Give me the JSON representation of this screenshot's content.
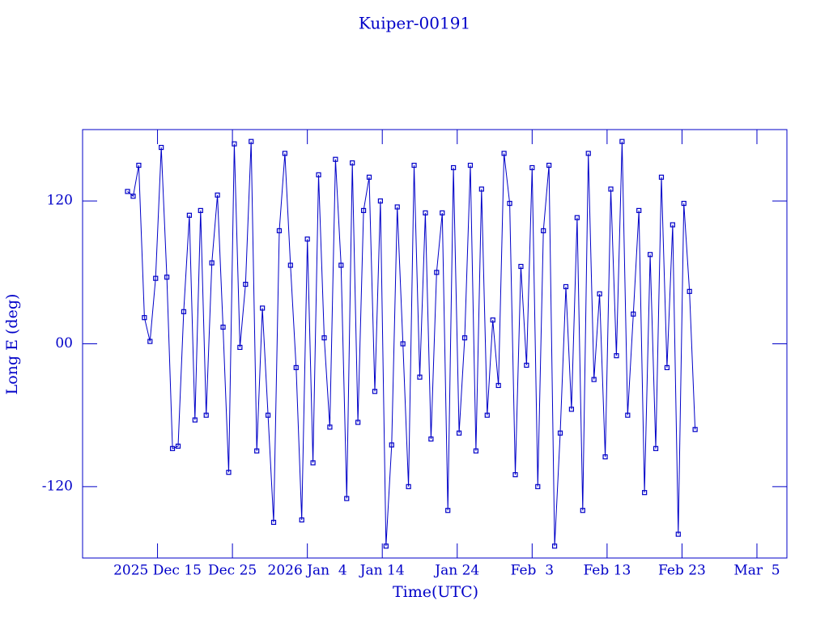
{
  "chart_data": {
    "type": "line",
    "title": "Kuiper-00191",
    "x_label": "Time(UTC)",
    "y_label": "Long E (deg)",
    "color": "#0000c8",
    "xlim": [
      "2025-12-05T00:00",
      "2026-03-09T00:00"
    ],
    "xticks": [
      {
        "value": "2025-12-15T00:00",
        "label": "2025 Dec 15"
      },
      {
        "value": "2025-12-25T00:00",
        "label": "Dec 25"
      },
      {
        "value": "2026-01-04T00:00",
        "label": "2026 Jan  4"
      },
      {
        "value": "2026-01-14T00:00",
        "label": "Jan 14"
      },
      {
        "value": "2026-01-24T00:00",
        "label": "Jan 24"
      },
      {
        "value": "2026-02-03T00:00",
        "label": "Feb  3"
      },
      {
        "value": "2026-02-13T00:00",
        "label": "Feb 13"
      },
      {
        "value": "2026-02-23T00:00",
        "label": "Feb 23"
      },
      {
        "value": "2026-03-05T00:00",
        "label": "Mar  5"
      }
    ],
    "ylim": [
      -180,
      180
    ],
    "yticks": [
      120,
      {
        "value": 0,
        "label": "00"
      },
      -120
    ],
    "x": [
      "2025-12-11T00:00",
      "2025-12-11T18:00",
      "2025-12-12T12:00",
      "2025-12-13T06:00",
      "2025-12-14T00:00",
      "2025-12-14T18:00",
      "2025-12-15T12:00",
      "2025-12-16T06:00",
      "2025-12-17T00:00",
      "2025-12-17T18:00",
      "2025-12-18T12:00",
      "2025-12-19T06:00",
      "2025-12-20T00:00",
      "2025-12-20T18:00",
      "2025-12-21T12:00",
      "2025-12-22T06:00",
      "2025-12-23T00:00",
      "2025-12-23T18:00",
      "2025-12-24T12:00",
      "2025-12-25T06:00",
      "2025-12-26T00:00",
      "2025-12-26T18:00",
      "2025-12-27T12:00",
      "2025-12-28T06:00",
      "2025-12-29T00:00",
      "2025-12-29T18:00",
      "2025-12-30T12:00",
      "2025-12-31T06:00",
      "2026-01-01T00:00",
      "2026-01-01T18:00",
      "2026-01-02T12:00",
      "2026-01-03T06:00",
      "2026-01-04T00:00",
      "2026-01-04T18:00",
      "2026-01-05T12:00",
      "2026-01-06T06:00",
      "2026-01-07T00:00",
      "2026-01-07T18:00",
      "2026-01-08T12:00",
      "2026-01-09T06:00",
      "2026-01-10T00:00",
      "2026-01-10T18:00",
      "2026-01-11T12:00",
      "2026-01-12T06:00",
      "2026-01-13T00:00",
      "2026-01-13T18:00",
      "2026-01-14T12:00",
      "2026-01-15T06:00",
      "2026-01-16T00:00",
      "2026-01-16T18:00",
      "2026-01-17T12:00",
      "2026-01-18T06:00",
      "2026-01-19T00:00",
      "2026-01-19T18:00",
      "2026-01-20T12:00",
      "2026-01-21T06:00",
      "2026-01-22T00:00",
      "2026-01-22T18:00",
      "2026-01-23T12:00",
      "2026-01-24T06:00",
      "2026-01-25T00:00",
      "2026-01-25T18:00",
      "2026-01-26T12:00",
      "2026-01-27T06:00",
      "2026-01-28T00:00",
      "2026-01-28T18:00",
      "2026-01-29T12:00",
      "2026-01-30T06:00",
      "2026-01-31T00:00",
      "2026-01-31T18:00",
      "2026-02-01T12:00",
      "2026-02-02T06:00",
      "2026-02-03T00:00",
      "2026-02-03T18:00",
      "2026-02-04T12:00",
      "2026-02-05T06:00",
      "2026-02-06T00:00",
      "2026-02-06T18:00",
      "2026-02-07T12:00",
      "2026-02-08T06:00",
      "2026-02-09T00:00",
      "2026-02-09T18:00",
      "2026-02-10T12:00",
      "2026-02-11T06:00",
      "2026-02-12T00:00",
      "2026-02-12T18:00",
      "2026-02-13T12:00",
      "2026-02-14T06:00",
      "2026-02-15T00:00",
      "2026-02-15T18:00",
      "2026-02-16T12:00",
      "2026-02-17T06:00",
      "2026-02-18T00:00",
      "2026-02-18T18:00",
      "2026-02-19T12:00",
      "2026-02-20T06:00",
      "2026-02-21T00:00",
      "2026-02-21T18:00",
      "2026-02-22T12:00",
      "2026-02-23T06:00",
      "2026-02-24T00:00",
      "2026-02-24T18:00"
    ],
    "values": [
      128,
      124,
      150,
      22,
      2,
      55,
      165,
      56,
      -88,
      -86,
      27,
      108,
      -64,
      112,
      -60,
      68,
      125,
      14,
      -108,
      168,
      -3,
      50,
      170,
      -90,
      30,
      -60,
      -150,
      95,
      160,
      66,
      -20,
      -148,
      88,
      -100,
      142,
      5,
      -70,
      155,
      66,
      -130,
      152,
      -66,
      112,
      140,
      -40,
      120,
      -170,
      -85,
      115,
      0,
      -120,
      150,
      -28,
      110,
      -80,
      60,
      110,
      -140,
      148,
      -75,
      5,
      150,
      -90,
      130,
      -60,
      20,
      -35,
      160,
      118,
      -110,
      65,
      -18,
      148,
      -120,
      95,
      150,
      -170,
      -75,
      48,
      -55,
      106,
      -140,
      160,
      -30,
      42,
      -95,
      130,
      -10,
      170,
      -60,
      25,
      112,
      -125,
      75,
      -88,
      140,
      -20,
      100,
      -160,
      118,
      44,
      -72
    ]
  }
}
